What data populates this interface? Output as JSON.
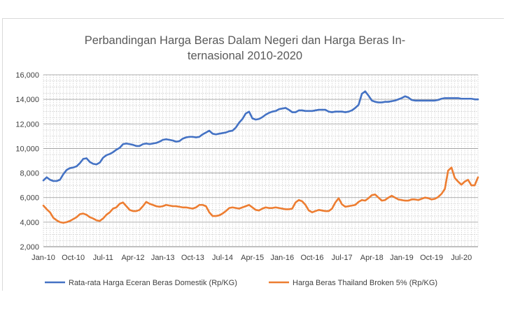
{
  "chart_data": {
    "type": "line",
    "title_lines": [
      "Perbandingan Harga Beras Dalam Negeri dan Harga Beras In-",
      "ternasional 2010-2020"
    ],
    "x_ticks": [
      "Jan-10",
      "Oct-10",
      "Jul-11",
      "Apr-12",
      "Jan-13",
      "Oct-13",
      "Jul-14",
      "Apr-15",
      "Jan-16",
      "Oct-16",
      "Jul-17",
      "Apr-18",
      "Jan-19",
      "Oct-19",
      "Jul-20"
    ],
    "x_start": "2010-01",
    "x_end": "2020-12",
    "ylim": [
      2000,
      16000
    ],
    "y_ticks": [
      "2,000",
      "4,000",
      "6,000",
      "8,000",
      "10,000",
      "12,000",
      "14,000",
      "16,000"
    ],
    "grid": true,
    "legend_position": "bottom",
    "series": [
      {
        "name": "Rata-rata Harga Eceran Beras Domestik (Rp/KG)",
        "color": "#4472c4",
        "points": [
          [
            "2010-01",
            7400
          ],
          [
            "2010-02",
            7650
          ],
          [
            "2010-03",
            7450
          ],
          [
            "2010-04",
            7350
          ],
          [
            "2010-05",
            7350
          ],
          [
            "2010-06",
            7450
          ],
          [
            "2010-07",
            7900
          ],
          [
            "2010-08",
            8250
          ],
          [
            "2010-09",
            8400
          ],
          [
            "2010-10",
            8450
          ],
          [
            "2010-11",
            8550
          ],
          [
            "2010-12",
            8800
          ],
          [
            "2011-01",
            9150
          ],
          [
            "2011-02",
            9200
          ],
          [
            "2011-03",
            8900
          ],
          [
            "2011-04",
            8750
          ],
          [
            "2011-05",
            8700
          ],
          [
            "2011-06",
            8850
          ],
          [
            "2011-07",
            9250
          ],
          [
            "2011-08",
            9450
          ],
          [
            "2011-09",
            9550
          ],
          [
            "2011-10",
            9700
          ],
          [
            "2011-11",
            9900
          ],
          [
            "2011-12",
            10050
          ],
          [
            "2012-01",
            10350
          ],
          [
            "2012-02",
            10400
          ],
          [
            "2012-03",
            10350
          ],
          [
            "2012-04",
            10300
          ],
          [
            "2012-05",
            10200
          ],
          [
            "2012-06",
            10200
          ],
          [
            "2012-07",
            10350
          ],
          [
            "2012-08",
            10400
          ],
          [
            "2012-09",
            10350
          ],
          [
            "2012-10",
            10400
          ],
          [
            "2012-11",
            10450
          ],
          [
            "2012-12",
            10550
          ],
          [
            "2013-01",
            10700
          ],
          [
            "2013-02",
            10750
          ],
          [
            "2013-03",
            10700
          ],
          [
            "2013-04",
            10650
          ],
          [
            "2013-05",
            10550
          ],
          [
            "2013-06",
            10600
          ],
          [
            "2013-07",
            10800
          ],
          [
            "2013-08",
            10900
          ],
          [
            "2013-09",
            10950
          ],
          [
            "2013-10",
            10950
          ],
          [
            "2013-11",
            10900
          ],
          [
            "2013-12",
            10950
          ],
          [
            "2014-01",
            11150
          ],
          [
            "2014-02",
            11300
          ],
          [
            "2014-03",
            11450
          ],
          [
            "2014-04",
            11200
          ],
          [
            "2014-05",
            11150
          ],
          [
            "2014-06",
            11200
          ],
          [
            "2014-07",
            11250
          ],
          [
            "2014-08",
            11300
          ],
          [
            "2014-09",
            11400
          ],
          [
            "2014-10",
            11450
          ],
          [
            "2014-11",
            11700
          ],
          [
            "2014-12",
            12100
          ],
          [
            "2015-01",
            12400
          ],
          [
            "2015-02",
            12850
          ],
          [
            "2015-03",
            13000
          ],
          [
            "2015-04",
            12450
          ],
          [
            "2015-05",
            12350
          ],
          [
            "2015-06",
            12400
          ],
          [
            "2015-07",
            12550
          ],
          [
            "2015-08",
            12750
          ],
          [
            "2015-09",
            12900
          ],
          [
            "2015-10",
            13000
          ],
          [
            "2015-11",
            13050
          ],
          [
            "2015-12",
            13200
          ],
          [
            "2016-01",
            13250
          ],
          [
            "2016-02",
            13300
          ],
          [
            "2016-03",
            13150
          ],
          [
            "2016-04",
            12950
          ],
          [
            "2016-05",
            12950
          ],
          [
            "2016-06",
            13100
          ],
          [
            "2016-07",
            13100
          ],
          [
            "2016-08",
            13050
          ],
          [
            "2016-09",
            13050
          ],
          [
            "2016-10",
            13050
          ],
          [
            "2016-11",
            13100
          ],
          [
            "2016-12",
            13150
          ],
          [
            "2017-01",
            13150
          ],
          [
            "2017-02",
            13150
          ],
          [
            "2017-03",
            13000
          ],
          [
            "2017-04",
            12950
          ],
          [
            "2017-05",
            13000
          ],
          [
            "2017-06",
            13000
          ],
          [
            "2017-07",
            13000
          ],
          [
            "2017-08",
            12950
          ],
          [
            "2017-09",
            13000
          ],
          [
            "2017-10",
            13100
          ],
          [
            "2017-11",
            13300
          ],
          [
            "2017-12",
            13550
          ],
          [
            "2018-01",
            14450
          ],
          [
            "2018-02",
            14650
          ],
          [
            "2018-03",
            14300
          ],
          [
            "2018-04",
            13900
          ],
          [
            "2018-05",
            13800
          ],
          [
            "2018-06",
            13750
          ],
          [
            "2018-07",
            13750
          ],
          [
            "2018-08",
            13800
          ],
          [
            "2018-09",
            13800
          ],
          [
            "2018-10",
            13850
          ],
          [
            "2018-11",
            13900
          ],
          [
            "2018-12",
            14000
          ],
          [
            "2019-01",
            14100
          ],
          [
            "2019-02",
            14250
          ],
          [
            "2019-03",
            14150
          ],
          [
            "2019-04",
            13950
          ],
          [
            "2019-05",
            13900
          ],
          [
            "2019-06",
            13900
          ],
          [
            "2019-07",
            13900
          ],
          [
            "2019-08",
            13900
          ],
          [
            "2019-09",
            13900
          ],
          [
            "2019-10",
            13900
          ],
          [
            "2019-11",
            13900
          ],
          [
            "2019-12",
            13950
          ],
          [
            "2020-01",
            14050
          ],
          [
            "2020-02",
            14100
          ],
          [
            "2020-03",
            14100
          ],
          [
            "2020-04",
            14100
          ],
          [
            "2020-05",
            14100
          ],
          [
            "2020-06",
            14100
          ],
          [
            "2020-07",
            14050
          ],
          [
            "2020-08",
            14050
          ],
          [
            "2020-09",
            14050
          ],
          [
            "2020-10",
            14050
          ],
          [
            "2020-11",
            14000
          ],
          [
            "2020-12",
            14000
          ]
        ]
      },
      {
        "name": "Harga Beras Thailand Broken  5% (Rp/KG)",
        "color": "#ed7d31",
        "points": [
          [
            "2010-01",
            5350
          ],
          [
            "2010-02",
            5050
          ],
          [
            "2010-03",
            4800
          ],
          [
            "2010-04",
            4350
          ],
          [
            "2010-05",
            4150
          ],
          [
            "2010-06",
            4000
          ],
          [
            "2010-07",
            3950
          ],
          [
            "2010-08",
            4000
          ],
          [
            "2010-09",
            4100
          ],
          [
            "2010-10",
            4250
          ],
          [
            "2010-11",
            4400
          ],
          [
            "2010-12",
            4650
          ],
          [
            "2011-01",
            4700
          ],
          [
            "2011-02",
            4600
          ],
          [
            "2011-03",
            4400
          ],
          [
            "2011-04",
            4300
          ],
          [
            "2011-05",
            4150
          ],
          [
            "2011-06",
            4100
          ],
          [
            "2011-07",
            4300
          ],
          [
            "2011-08",
            4600
          ],
          [
            "2011-09",
            4800
          ],
          [
            "2011-10",
            5100
          ],
          [
            "2011-11",
            5200
          ],
          [
            "2011-12",
            5500
          ],
          [
            "2012-01",
            5600
          ],
          [
            "2012-02",
            5300
          ],
          [
            "2012-03",
            5000
          ],
          [
            "2012-04",
            4900
          ],
          [
            "2012-05",
            4900
          ],
          [
            "2012-06",
            5000
          ],
          [
            "2012-07",
            5300
          ],
          [
            "2012-08",
            5650
          ],
          [
            "2012-09",
            5500
          ],
          [
            "2012-10",
            5400
          ],
          [
            "2012-11",
            5300
          ],
          [
            "2012-12",
            5250
          ],
          [
            "2013-01",
            5300
          ],
          [
            "2013-02",
            5400
          ],
          [
            "2013-03",
            5350
          ],
          [
            "2013-04",
            5300
          ],
          [
            "2013-05",
            5300
          ],
          [
            "2013-06",
            5250
          ],
          [
            "2013-07",
            5200
          ],
          [
            "2013-08",
            5200
          ],
          [
            "2013-09",
            5150
          ],
          [
            "2013-10",
            5100
          ],
          [
            "2013-11",
            5200
          ],
          [
            "2013-12",
            5400
          ],
          [
            "2014-01",
            5400
          ],
          [
            "2014-02",
            5300
          ],
          [
            "2014-03",
            4800
          ],
          [
            "2014-04",
            4500
          ],
          [
            "2014-05",
            4500
          ],
          [
            "2014-06",
            4550
          ],
          [
            "2014-07",
            4700
          ],
          [
            "2014-08",
            4900
          ],
          [
            "2014-09",
            5150
          ],
          [
            "2014-10",
            5200
          ],
          [
            "2014-11",
            5150
          ],
          [
            "2014-12",
            5100
          ],
          [
            "2015-01",
            5200
          ],
          [
            "2015-02",
            5300
          ],
          [
            "2015-03",
            5400
          ],
          [
            "2015-04",
            5200
          ],
          [
            "2015-05",
            5000
          ],
          [
            "2015-06",
            4950
          ],
          [
            "2015-07",
            5100
          ],
          [
            "2015-08",
            5200
          ],
          [
            "2015-09",
            5150
          ],
          [
            "2015-10",
            5150
          ],
          [
            "2015-11",
            5200
          ],
          [
            "2015-12",
            5150
          ],
          [
            "2016-01",
            5100
          ],
          [
            "2016-02",
            5050
          ],
          [
            "2016-03",
            5050
          ],
          [
            "2016-04",
            5100
          ],
          [
            "2016-05",
            5600
          ],
          [
            "2016-06",
            5800
          ],
          [
            "2016-07",
            5700
          ],
          [
            "2016-08",
            5400
          ],
          [
            "2016-09",
            4950
          ],
          [
            "2016-10",
            4800
          ],
          [
            "2016-11",
            4900
          ],
          [
            "2016-12",
            5000
          ],
          [
            "2017-01",
            4950
          ],
          [
            "2017-02",
            4900
          ],
          [
            "2017-03",
            4900
          ],
          [
            "2017-04",
            5100
          ],
          [
            "2017-05",
            5600
          ],
          [
            "2017-06",
            5950
          ],
          [
            "2017-07",
            5450
          ],
          [
            "2017-08",
            5250
          ],
          [
            "2017-09",
            5300
          ],
          [
            "2017-10",
            5350
          ],
          [
            "2017-11",
            5400
          ],
          [
            "2017-12",
            5650
          ],
          [
            "2018-01",
            5800
          ],
          [
            "2018-02",
            5750
          ],
          [
            "2018-03",
            5950
          ],
          [
            "2018-04",
            6200
          ],
          [
            "2018-05",
            6250
          ],
          [
            "2018-06",
            6000
          ],
          [
            "2018-07",
            5750
          ],
          [
            "2018-08",
            5800
          ],
          [
            "2018-09",
            6000
          ],
          [
            "2018-10",
            6150
          ],
          [
            "2018-11",
            6000
          ],
          [
            "2018-12",
            5850
          ],
          [
            "2019-01",
            5800
          ],
          [
            "2019-02",
            5750
          ],
          [
            "2019-03",
            5750
          ],
          [
            "2019-04",
            5850
          ],
          [
            "2019-05",
            5850
          ],
          [
            "2019-06",
            5800
          ],
          [
            "2019-07",
            5900
          ],
          [
            "2019-08",
            6000
          ],
          [
            "2019-09",
            5950
          ],
          [
            "2019-10",
            5850
          ],
          [
            "2019-11",
            5900
          ],
          [
            "2019-12",
            6050
          ],
          [
            "2020-01",
            6300
          ],
          [
            "2020-02",
            6700
          ],
          [
            "2020-03",
            8200
          ],
          [
            "2020-04",
            8450
          ],
          [
            "2020-05",
            7600
          ],
          [
            "2020-06",
            7300
          ],
          [
            "2020-07",
            7050
          ],
          [
            "2020-08",
            7300
          ],
          [
            "2020-09",
            7450
          ],
          [
            "2020-10",
            7000
          ],
          [
            "2020-11",
            7000
          ],
          [
            "2020-12",
            7650
          ]
        ]
      }
    ]
  }
}
